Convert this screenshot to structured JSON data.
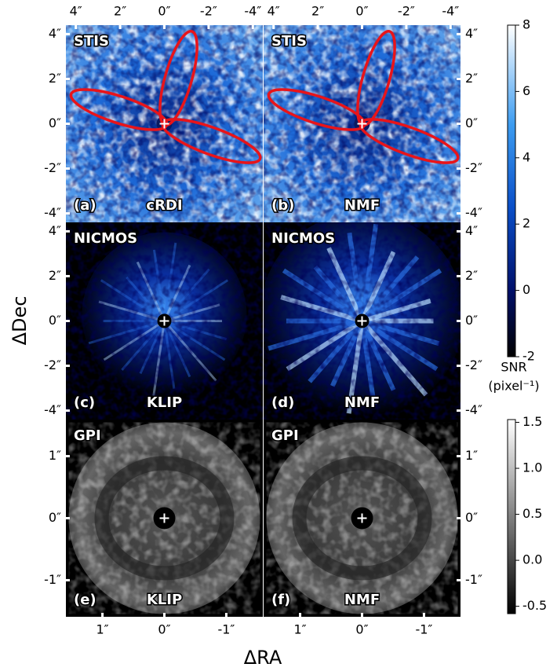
{
  "figure": {
    "xlabel": "ΔRA",
    "ylabel": "ΔDec"
  },
  "chart_data": [
    {
      "type": "image",
      "instrument": "STIS",
      "letter": "(a)",
      "method": "cRDI",
      "cmap": "blue",
      "xlim": [
        4.45,
        -4.45
      ],
      "ylim": [
        -4.4,
        4.4
      ],
      "xticks": [
        {
          "value": 4,
          "label": "4″"
        },
        {
          "value": 2,
          "label": "2″"
        },
        {
          "value": 0,
          "label": "0″"
        },
        {
          "value": -2,
          "label": "-2″"
        },
        {
          "value": -4,
          "label": "-4″"
        }
      ],
      "yticks": [
        {
          "value": 4,
          "label": "4″"
        },
        {
          "value": 2,
          "label": "2″"
        },
        {
          "value": 0,
          "label": "0″"
        },
        {
          "value": -2,
          "label": "-2″"
        },
        {
          "value": -4,
          "label": "-4″"
        }
      ]
    },
    {
      "type": "image",
      "instrument": "STIS",
      "letter": "(b)",
      "method": "NMF",
      "cmap": "blue",
      "xlim": [
        4.45,
        -4.45
      ],
      "ylim": [
        -4.4,
        4.4
      ],
      "xticks": [
        {
          "value": 4,
          "label": "4″"
        },
        {
          "value": 2,
          "label": "2″"
        },
        {
          "value": 0,
          "label": "0″"
        },
        {
          "value": -2,
          "label": "-2″"
        },
        {
          "value": -4,
          "label": "-4″"
        }
      ],
      "yticks": [
        {
          "value": 4,
          "label": "4″"
        },
        {
          "value": 2,
          "label": "2″"
        },
        {
          "value": 0,
          "label": "0″"
        },
        {
          "value": -2,
          "label": "-2″"
        },
        {
          "value": -4,
          "label": "-4″"
        }
      ]
    },
    {
      "type": "image",
      "instrument": "NICMOS",
      "letter": "(c)",
      "method": "KLIP",
      "cmap": "nicmos",
      "ylim": [
        -4.4,
        4.4
      ],
      "yticks": [
        {
          "value": 4,
          "label": "4″"
        },
        {
          "value": 2,
          "label": "2″"
        },
        {
          "value": 0,
          "label": "0″"
        },
        {
          "value": -2,
          "label": "-2″"
        },
        {
          "value": -4,
          "label": "-4″"
        }
      ]
    },
    {
      "type": "image",
      "instrument": "NICMOS",
      "letter": "(d)",
      "method": "NMF",
      "cmap": "nicmos",
      "ylim": [
        -4.4,
        4.4
      ],
      "yticks": [
        {
          "value": 4,
          "label": "4″"
        },
        {
          "value": 2,
          "label": "2″"
        },
        {
          "value": 0,
          "label": "0″"
        },
        {
          "value": -2,
          "label": "-2″"
        },
        {
          "value": -4,
          "label": "-4″"
        }
      ]
    },
    {
      "type": "image",
      "instrument": "GPI",
      "letter": "(e)",
      "method": "KLIP",
      "cmap": "gray",
      "xlim": [
        1.59,
        -1.59
      ],
      "ylim": [
        -1.59,
        1.59
      ],
      "xticks": [
        {
          "value": 1,
          "label": "1″"
        },
        {
          "value": 0,
          "label": "0″"
        },
        {
          "value": -1,
          "label": "-1″"
        }
      ],
      "yticks": [
        {
          "value": 1,
          "label": "1″"
        },
        {
          "value": 0,
          "label": "0″"
        },
        {
          "value": -1,
          "label": "-1″"
        }
      ]
    },
    {
      "type": "image",
      "instrument": "GPI",
      "letter": "(f)",
      "method": "NMF",
      "cmap": "gray",
      "xlim": [
        1.59,
        -1.59
      ],
      "ylim": [
        -1.59,
        1.59
      ],
      "xticks": [
        {
          "value": 1,
          "label": "1″"
        },
        {
          "value": 0,
          "label": "0″"
        },
        {
          "value": -1,
          "label": "-1″"
        }
      ],
      "yticks": [
        {
          "value": 1,
          "label": "1″"
        },
        {
          "value": 0,
          "label": "0″"
        },
        {
          "value": -1,
          "label": "-1″"
        }
      ]
    },
    {
      "type": "colorbar",
      "cmap": "blue",
      "label": [
        "SNR",
        "(pixel⁻¹)"
      ],
      "ylim": [
        -2,
        8
      ],
      "yticks": [
        -2,
        0,
        2,
        4,
        6,
        8
      ]
    },
    {
      "type": "colorbar",
      "cmap": "gray",
      "ylim": [
        -0.58,
        1.53
      ],
      "yticks": [
        -0.5,
        {
          "value": 0,
          "label": "0.0"
        },
        0.5,
        {
          "value": 1,
          "label": "1.0"
        },
        1.5
      ]
    }
  ]
}
